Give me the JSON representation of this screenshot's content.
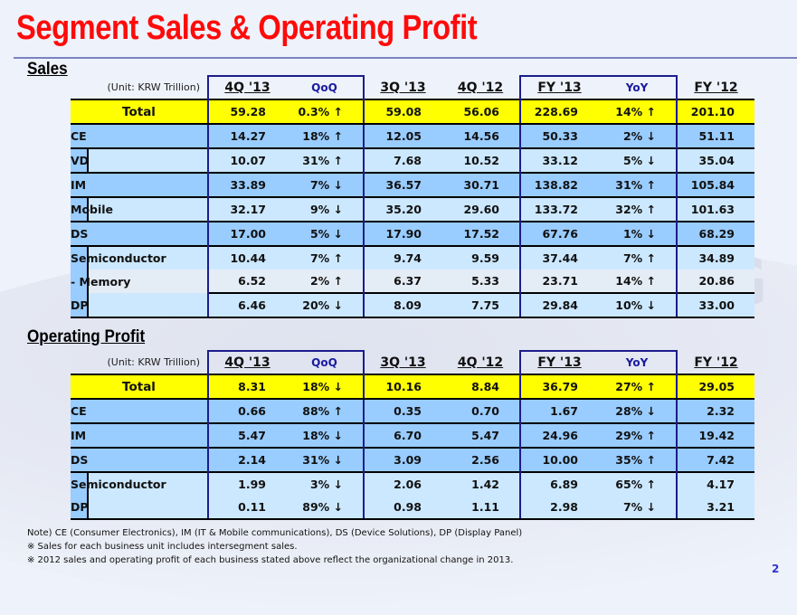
{
  "title": "Segment Sales & Operating Profit",
  "unit_label": "(Unit: KRW Trillion)",
  "columns": [
    "4Q '13",
    "QoQ",
    "3Q '13",
    "4Q '12",
    "FY '13",
    "YoY",
    "FY '12"
  ],
  "sales": {
    "section_title": "Sales",
    "rows": [
      {
        "label": "Total",
        "type": "total",
        "values": [
          "59.28",
          "0.3% ↑",
          "59.08",
          "56.06",
          "228.69",
          "14% ↑",
          "201.10"
        ]
      },
      {
        "label": "CE",
        "type": "segment",
        "values": [
          "14.27",
          "18% ↑",
          "12.05",
          "14.56",
          "50.33",
          "2% ↓",
          "51.11"
        ]
      },
      {
        "label": "VD",
        "type": "sub",
        "values": [
          "10.07",
          "31% ↑",
          "7.68",
          "10.52",
          "33.12",
          "5% ↓",
          "35.04"
        ]
      },
      {
        "label": "IM",
        "type": "segment",
        "values": [
          "33.89",
          "7% ↓",
          "36.57",
          "30.71",
          "138.82",
          "31% ↑",
          "105.84"
        ]
      },
      {
        "label": "Mobile",
        "type": "sub",
        "values": [
          "32.17",
          "9% ↓",
          "35.20",
          "29.60",
          "133.72",
          "32% ↑",
          "101.63"
        ]
      },
      {
        "label": "DS",
        "type": "segment",
        "values": [
          "17.00",
          "5% ↓",
          "17.90",
          "17.52",
          "67.76",
          "1% ↓",
          "68.29"
        ]
      },
      {
        "label": "Semiconductor",
        "type": "sub",
        "values": [
          "10.44",
          "7% ↑",
          "9.74",
          "9.59",
          "37.44",
          "7% ↑",
          "34.89"
        ]
      },
      {
        "label": "- Memory",
        "type": "memory",
        "values": [
          "6.52",
          "2% ↑",
          "6.37",
          "5.33",
          "23.71",
          "14% ↑",
          "20.86"
        ]
      },
      {
        "label": "DP",
        "type": "sub",
        "values": [
          "6.46",
          "20% ↓",
          "8.09",
          "7.75",
          "29.84",
          "10% ↓",
          "33.00"
        ]
      }
    ]
  },
  "operating_profit": {
    "section_title": "Operating Profit",
    "rows": [
      {
        "label": "Total",
        "type": "total",
        "values": [
          "8.31",
          "18% ↓",
          "10.16",
          "8.84",
          "36.79",
          "27% ↑",
          "29.05"
        ]
      },
      {
        "label": "CE",
        "type": "segment",
        "values": [
          "0.66",
          "88% ↑",
          "0.35",
          "0.70",
          "1.67",
          "28% ↓",
          "2.32"
        ]
      },
      {
        "label": "IM",
        "type": "segment",
        "values": [
          "5.47",
          "18% ↓",
          "6.70",
          "5.47",
          "24.96",
          "29% ↑",
          "19.42"
        ]
      },
      {
        "label": "DS",
        "type": "segment",
        "values": [
          "2.14",
          "31% ↓",
          "3.09",
          "2.56",
          "10.00",
          "35% ↑",
          "7.42"
        ]
      },
      {
        "label": "Semiconductor",
        "type": "sub",
        "values": [
          "1.99",
          "3% ↓",
          "2.06",
          "1.42",
          "6.89",
          "65% ↑",
          "4.17"
        ]
      },
      {
        "label": "DP",
        "type": "sub",
        "values": [
          "0.11",
          "89% ↓",
          "0.98",
          "1.11",
          "2.98",
          "7% ↓",
          "3.21"
        ]
      }
    ]
  },
  "notes": [
    "Note) CE (Consumer Electronics), IM (IT & Mobile communications),  DS (Device Solutions), DP (Display Panel)",
    "※ Sales for each business unit includes intersegment sales.",
    "※ 2012 sales and operating profit of each business stated above reflect the organizational change in 2013."
  ],
  "page_number": "2",
  "watermark": "SAMSUNG",
  "colors": {
    "title": "#ff0a0a",
    "total_row": "#ffff00",
    "segment_row": "#99ccff",
    "sub_row": "#cce8ff",
    "percent_text": "#1a1aa0",
    "box_border": "#1c1c8c"
  }
}
